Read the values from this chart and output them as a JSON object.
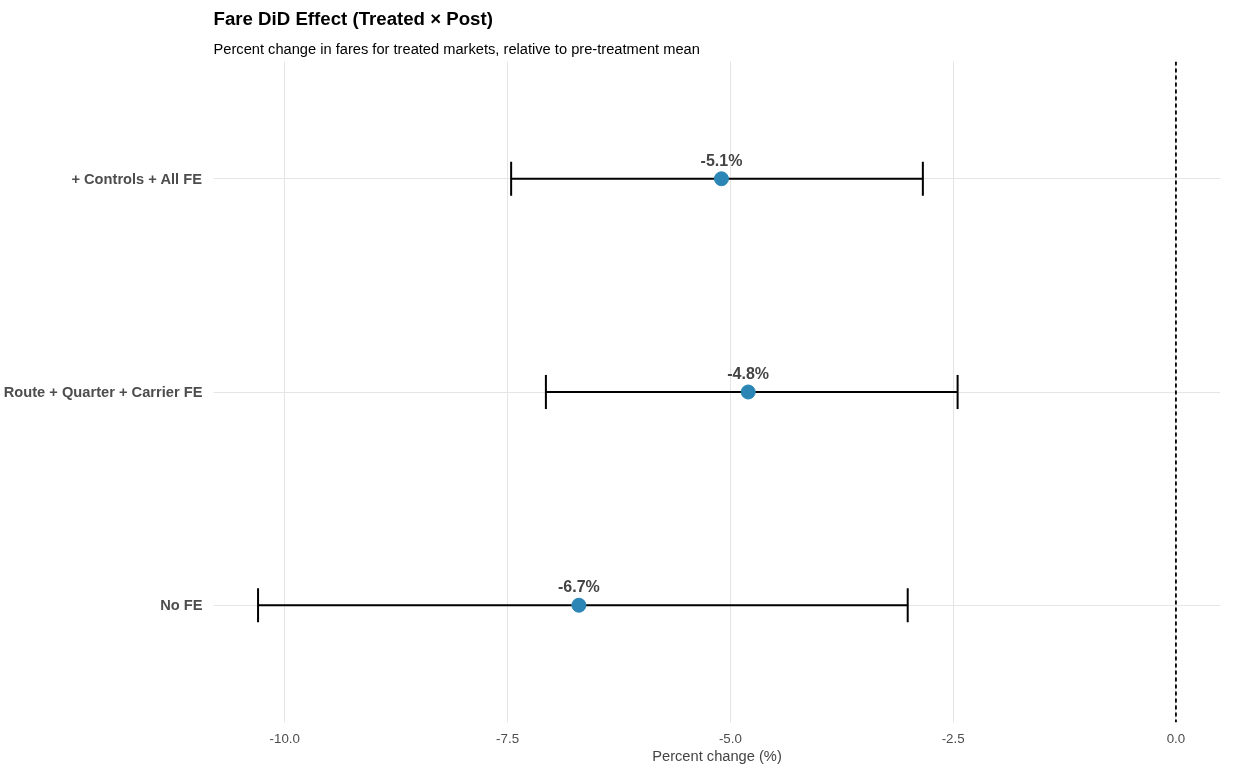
{
  "chart_data": {
    "type": "scatter",
    "orientation": "horizontal",
    "title": "Fare DiD Effect (Treated × Post)",
    "subtitle": "Percent change in fares for treated markets, relative to pre-treatment mean",
    "xlabel": "Percent change (%)",
    "categories": [
      "+ Controls + All FE",
      "Route + Quarter + Carrier FE",
      "No FE"
    ],
    "series": [
      {
        "color": "#2c86b5",
        "values": [
          -5.1,
          -4.8,
          -6.7
        ],
        "errors": [
          [
            -7.46,
            -2.84
          ],
          [
            -7.07,
            -2.45
          ],
          [
            -10.3,
            -3.01
          ]
        ],
        "value_labels": [
          "-5.1%",
          "-4.8%",
          "-6.7%"
        ]
      }
    ],
    "xlim": [
      -10.8,
      0.5
    ],
    "xticks": [
      {
        "value": -10,
        "label": "-10.0"
      },
      {
        "value": -7.5,
        "label": "-7.5"
      },
      {
        "value": -5,
        "label": "-5.0"
      },
      {
        "value": -2.5,
        "label": "-2.5"
      },
      {
        "value": 0,
        "label": "0.0"
      }
    ],
    "ref_lines": [
      {
        "axis": "x",
        "value": 0,
        "color": "#000000",
        "line_style": "dashed"
      }
    ],
    "grid": true,
    "marker": "circle"
  }
}
